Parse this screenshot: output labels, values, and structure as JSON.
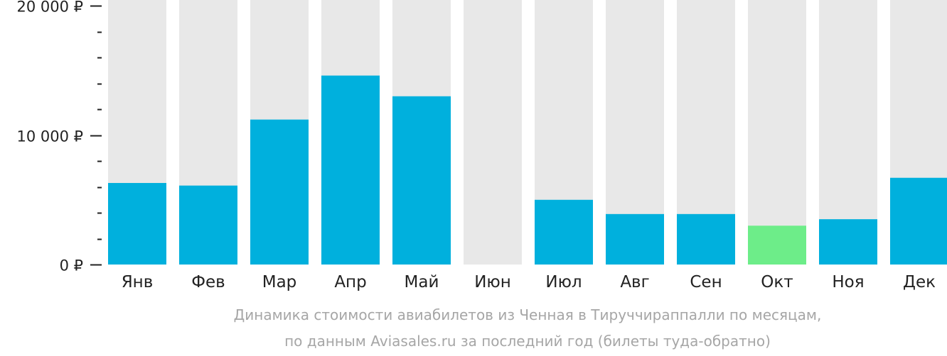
{
  "chart_data": {
    "type": "bar",
    "categories": [
      "Янв",
      "Фев",
      "Мар",
      "Апр",
      "Май",
      "Июн",
      "Июл",
      "Авг",
      "Сен",
      "Окт",
      "Ноя",
      "Дек"
    ],
    "values": [
      6300,
      6100,
      11200,
      14600,
      13000,
      null,
      5000,
      3900,
      3900,
      3000,
      3500,
      6700
    ],
    "ylim": [
      0,
      20000
    ],
    "yticks": [
      {
        "value": 0,
        "label": "0 ₽"
      },
      {
        "value": 10000,
        "label": "10 000 ₽"
      },
      {
        "value": 20000,
        "label": "20 000 ₽"
      }
    ],
    "minor_tick_step": 2000,
    "grid": false,
    "highlight_index": 9,
    "colors": {
      "bar": "#00b0dd",
      "highlight": "#6ded89",
      "background_bar": "#e8e8e8",
      "axis": "#222222"
    }
  },
  "caption": {
    "line1": "Динамика стоимости авиабилетов из Ченная в Тируччираппалли по месяцам,",
    "line2": "по данным Aviasales.ru за последний год (билеты туда-обратно)"
  }
}
